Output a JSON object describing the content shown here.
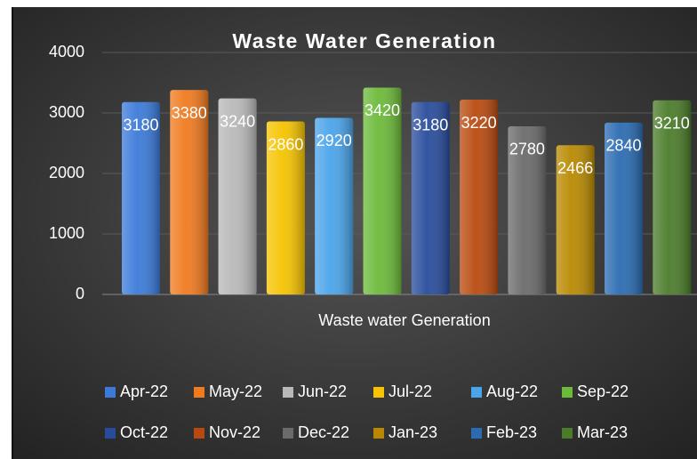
{
  "chart_data": {
    "type": "bar",
    "title": "Waste Water Generation",
    "categories": [
      "Waste water Generation"
    ],
    "series": [
      {
        "name": "Apr-22",
        "color": "#3b7ad9",
        "values": [
          3180
        ]
      },
      {
        "name": "May-22",
        "color": "#f07a1e",
        "values": [
          3380
        ]
      },
      {
        "name": "Jun-22",
        "color": "#b8b8b8",
        "values": [
          3240
        ]
      },
      {
        "name": "Jul-22",
        "color": "#f6c400",
        "values": [
          2860
        ]
      },
      {
        "name": "Aug-22",
        "color": "#4aa4ea",
        "values": [
          2920
        ]
      },
      {
        "name": "Sep-22",
        "color": "#6cba3a",
        "values": [
          3420
        ]
      },
      {
        "name": "Oct-22",
        "color": "#284c9c",
        "values": [
          3180
        ]
      },
      {
        "name": "Nov-22",
        "color": "#b94a0f",
        "values": [
          3220
        ]
      },
      {
        "name": "Dec-22",
        "color": "#6b6b6b",
        "values": [
          2780
        ]
      },
      {
        "name": "Jan-23",
        "color": "#b88900",
        "values": [
          2466
        ]
      },
      {
        "name": "Feb-23",
        "color": "#2a6bb2",
        "values": [
          2840
        ]
      },
      {
        "name": "Mar-23",
        "color": "#4b7c2a",
        "values": [
          3210
        ]
      }
    ],
    "ylim": [
      0,
      4000
    ],
    "yticks": [
      0,
      1000,
      2000,
      3000,
      4000
    ],
    "grid": true,
    "legend": "bottom"
  }
}
